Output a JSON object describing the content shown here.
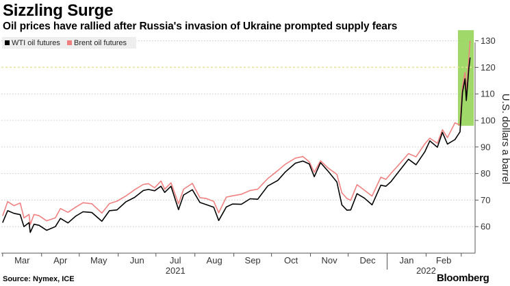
{
  "header": {
    "title": "Sizzling Surge",
    "subtitle": "Oil prices have rallied after Russia's invasion of Ukraine prompted supply fears"
  },
  "footer": {
    "source": "Source: Nymex, ICE",
    "brand": "Bloomberg"
  },
  "colors": {
    "wti": "#000000",
    "brent": "#f08080",
    "highlight": "#8fd14f",
    "reference_line": "#e6e29a",
    "grid": "#cccccc",
    "legend_bg": "#eeeeee"
  },
  "chart_data": {
    "type": "line",
    "title": "Sizzling Surge",
    "subtitle": "Oil prices have rallied after Russia's invasion of Ukraine prompted supply fears",
    "ylabel": "U.S. dollars a barrel",
    "ylim": [
      50,
      133
    ],
    "yticks": [
      60,
      70,
      80,
      90,
      100,
      110,
      120,
      130
    ],
    "y_axis_side": "right",
    "grid": "horizontal dotted",
    "legend": "top-left",
    "x_months": [
      "Mar",
      "Apr",
      "May",
      "Jun",
      "Jul",
      "Aug",
      "Sep",
      "Oct",
      "Nov",
      "Dec",
      "Jan",
      "Feb"
    ],
    "x_years": [
      "2021",
      "2022"
    ],
    "reference_line_y": 120,
    "highlight_region": {
      "x_start": "Mar 2022",
      "x_end": "Mar 2022",
      "y_min": 98,
      "y_max": 134
    },
    "series": [
      {
        "name": "WTI oil futures",
        "color": "#000000",
        "points": [
          [
            "2021-03-01",
            61.5
          ],
          [
            "2021-03-05",
            66
          ],
          [
            "2021-03-10",
            65
          ],
          [
            "2021-03-15",
            64.5
          ],
          [
            "2021-03-18",
            60
          ],
          [
            "2021-03-22",
            61.5
          ],
          [
            "2021-03-23",
            57.8
          ],
          [
            "2021-03-26",
            60.9
          ],
          [
            "2021-03-30",
            60.5
          ],
          [
            "2021-04-05",
            58.6
          ],
          [
            "2021-04-12",
            60
          ],
          [
            "2021-04-16",
            63.1
          ],
          [
            "2021-04-22",
            61.4
          ],
          [
            "2021-04-28",
            63.9
          ],
          [
            "2021-05-04",
            65.6
          ],
          [
            "2021-05-11",
            65.3
          ],
          [
            "2021-05-19",
            62
          ],
          [
            "2021-05-25",
            66
          ],
          [
            "2021-05-31",
            66.3
          ],
          [
            "2021-06-07",
            69.3
          ],
          [
            "2021-06-14",
            71
          ],
          [
            "2021-06-21",
            73.6
          ],
          [
            "2021-06-25",
            74
          ],
          [
            "2021-06-30",
            73.5
          ],
          [
            "2021-07-05",
            75.2
          ],
          [
            "2021-07-08",
            72.9
          ],
          [
            "2021-07-13",
            75.2
          ],
          [
            "2021-07-19",
            66.4
          ],
          [
            "2021-07-23",
            71.9
          ],
          [
            "2021-07-30",
            73.9
          ],
          [
            "2021-08-05",
            69.1
          ],
          [
            "2021-08-10",
            68.3
          ],
          [
            "2021-08-16",
            67.3
          ],
          [
            "2021-08-20",
            62.3
          ],
          [
            "2021-08-26",
            67.4
          ],
          [
            "2021-08-31",
            68.5
          ],
          [
            "2021-09-07",
            68.4
          ],
          [
            "2021-09-14",
            70.5
          ],
          [
            "2021-09-20",
            70.3
          ],
          [
            "2021-09-28",
            75.3
          ],
          [
            "2021-10-06",
            77.4
          ],
          [
            "2021-10-12",
            80.6
          ],
          [
            "2021-10-20",
            83.9
          ],
          [
            "2021-10-26",
            84.7
          ],
          [
            "2021-10-31",
            83.6
          ],
          [
            "2021-11-04",
            78.8
          ],
          [
            "2021-11-09",
            84.1
          ],
          [
            "2021-11-15",
            80.9
          ],
          [
            "2021-11-22",
            76.8
          ],
          [
            "2021-11-26",
            68.2
          ],
          [
            "2021-11-30",
            66.2
          ],
          [
            "2021-12-03",
            66.3
          ],
          [
            "2021-12-08",
            72.4
          ],
          [
            "2021-12-14",
            70.7
          ],
          [
            "2021-12-20",
            68.2
          ],
          [
            "2021-12-27",
            75.6
          ],
          [
            "2021-12-31",
            75.2
          ],
          [
            "2022-01-04",
            76.9
          ],
          [
            "2022-01-11",
            81.2
          ],
          [
            "2022-01-18",
            85.4
          ],
          [
            "2022-01-24",
            83.3
          ],
          [
            "2022-01-31",
            88.2
          ],
          [
            "2022-02-04",
            92.3
          ],
          [
            "2022-02-10",
            89.9
          ],
          [
            "2022-02-14",
            95.5
          ],
          [
            "2022-02-18",
            91.1
          ],
          [
            "2022-02-24",
            92.8
          ],
          [
            "2022-02-28",
            95.7
          ],
          [
            "2022-03-02",
            110.6
          ],
          [
            "2022-03-04",
            115.7
          ],
          [
            "2022-03-05",
            107.5
          ],
          [
            "2022-03-07",
            119.4
          ],
          [
            "2022-03-08",
            123.7
          ]
        ]
      },
      {
        "name": "Brent oil futures",
        "color": "#f08080",
        "points": [
          [
            "2021-03-01",
            64
          ],
          [
            "2021-03-05",
            69.4
          ],
          [
            "2021-03-10",
            67.9
          ],
          [
            "2021-03-15",
            68.9
          ],
          [
            "2021-03-18",
            63.3
          ],
          [
            "2021-03-22",
            64.6
          ],
          [
            "2021-03-23",
            60.8
          ],
          [
            "2021-03-26",
            64.6
          ],
          [
            "2021-03-30",
            64.1
          ],
          [
            "2021-04-05",
            62.2
          ],
          [
            "2021-04-12",
            63.3
          ],
          [
            "2021-04-16",
            66.8
          ],
          [
            "2021-04-22",
            65.4
          ],
          [
            "2021-04-28",
            67.3
          ],
          [
            "2021-05-04",
            69
          ],
          [
            "2021-05-11",
            68.6
          ],
          [
            "2021-05-19",
            65.1
          ],
          [
            "2021-05-25",
            68.7
          ],
          [
            "2021-05-31",
            69.6
          ],
          [
            "2021-06-07",
            71.5
          ],
          [
            "2021-06-14",
            73.9
          ],
          [
            "2021-06-21",
            75.9
          ],
          [
            "2021-06-25",
            76.2
          ],
          [
            "2021-06-30",
            74.6
          ],
          [
            "2021-07-05",
            77.2
          ],
          [
            "2021-07-08",
            74.1
          ],
          [
            "2021-07-13",
            76.5
          ],
          [
            "2021-07-19",
            68.6
          ],
          [
            "2021-07-23",
            74.1
          ],
          [
            "2021-07-30",
            76.3
          ],
          [
            "2021-08-05",
            70.9
          ],
          [
            "2021-08-10",
            70.6
          ],
          [
            "2021-08-16",
            69.5
          ],
          [
            "2021-08-20",
            65.2
          ],
          [
            "2021-08-26",
            71.1
          ],
          [
            "2021-08-31",
            71.6
          ],
          [
            "2021-09-07",
            72.2
          ],
          [
            "2021-09-14",
            73.6
          ],
          [
            "2021-09-20",
            74.1
          ],
          [
            "2021-09-28",
            78.1
          ],
          [
            "2021-10-06",
            81.1
          ],
          [
            "2021-10-12",
            83.5
          ],
          [
            "2021-10-20",
            85.8
          ],
          [
            "2021-10-26",
            86.4
          ],
          [
            "2021-10-31",
            84.4
          ],
          [
            "2021-11-04",
            80.5
          ],
          [
            "2021-11-09",
            84.8
          ],
          [
            "2021-11-15",
            82.1
          ],
          [
            "2021-11-22",
            79.7
          ],
          [
            "2021-11-26",
            72.7
          ],
          [
            "2021-11-30",
            70.6
          ],
          [
            "2021-12-03",
            69.9
          ],
          [
            "2021-12-08",
            75.8
          ],
          [
            "2021-12-14",
            73.7
          ],
          [
            "2021-12-20",
            71.5
          ],
          [
            "2021-12-27",
            78.6
          ],
          [
            "2021-12-31",
            77.8
          ],
          [
            "2022-01-04",
            80
          ],
          [
            "2022-01-11",
            83.7
          ],
          [
            "2022-01-18",
            87.5
          ],
          [
            "2022-01-24",
            86.3
          ],
          [
            "2022-01-31",
            91.2
          ],
          [
            "2022-02-04",
            93.3
          ],
          [
            "2022-02-10",
            91.4
          ],
          [
            "2022-02-14",
            96.5
          ],
          [
            "2022-02-18",
            93.5
          ],
          [
            "2022-02-24",
            99.1
          ],
          [
            "2022-02-28",
            98.2
          ],
          [
            "2022-03-02",
            112.9
          ],
          [
            "2022-03-04",
            118.1
          ],
          [
            "2022-03-05",
            110
          ],
          [
            "2022-03-07",
            123.2
          ],
          [
            "2022-03-08",
            130
          ]
        ]
      }
    ]
  }
}
